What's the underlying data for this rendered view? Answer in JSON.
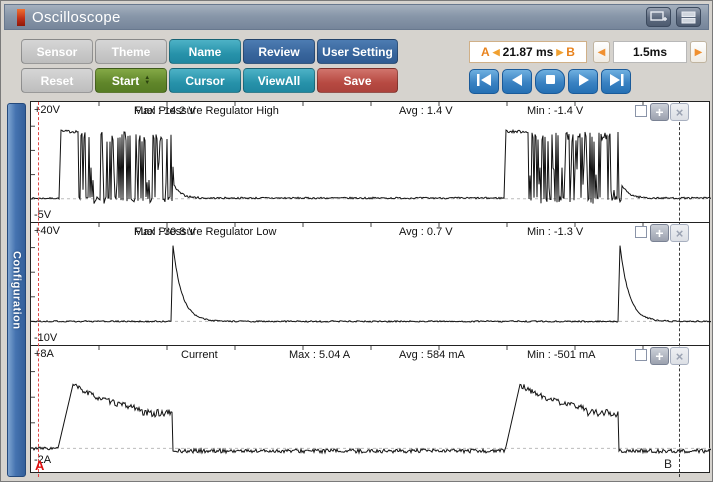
{
  "window": {
    "title": "Oscilloscope"
  },
  "toolbar": {
    "rows": [
      [
        {
          "label": "Sensor",
          "style": "gray"
        },
        {
          "label": "Theme",
          "style": "gray"
        },
        {
          "label": "Name",
          "style": "teal"
        },
        {
          "label": "Review",
          "style": "blue"
        },
        {
          "label": "User Setting",
          "style": "blue"
        }
      ],
      [
        {
          "label": "Reset",
          "style": "gray"
        },
        {
          "label": "Start",
          "style": "green",
          "spinner": true
        },
        {
          "label": "Cursor",
          "style": "teal"
        },
        {
          "label": "ViewAll",
          "style": "teal"
        },
        {
          "label": "Save",
          "style": "red"
        }
      ]
    ],
    "cursor_readout": {
      "a": "A",
      "value": "21.87 ms",
      "b": "B"
    },
    "timebase": {
      "value": "1.5ms"
    },
    "playback": [
      {
        "name": "skip-to-start"
      },
      {
        "name": "step-back"
      },
      {
        "name": "stop"
      },
      {
        "name": "play"
      },
      {
        "name": "skip-to-end"
      }
    ]
  },
  "sidebar": {
    "tab": "Configuration"
  },
  "cursors": {
    "a": {
      "label": "A"
    },
    "b": {
      "label": "B"
    }
  },
  "channels": [
    {
      "top": "+20V",
      "bottom": "-5V",
      "name": "Fuel Pressure Regulator High",
      "max": "Max : 14.2 V",
      "avg": "Avg : 1.4 V",
      "min": "Min : -1.4 V"
    },
    {
      "top": "+40V",
      "bottom": "-10V",
      "name": "Fuel Pressure Regulator Low",
      "max": "Max : 30.8 V",
      "avg": "Avg : 0.7 V",
      "min": "Min : -1.3 V"
    },
    {
      "top": "+8A",
      "bottom": "-2A",
      "name": "Current",
      "max": "Max : 5.04 A",
      "avg": "Avg : 584 mA",
      "min": "Min : -501 mA"
    }
  ],
  "chart_data": [
    {
      "type": "line",
      "title": "Fuel Pressure Regulator High",
      "unit": "V",
      "ylim": [
        -5,
        20
      ],
      "x_unit": "px",
      "xlim": [
        0,
        680
      ],
      "stats": {
        "max": 14.2,
        "avg": 1.4,
        "min": -1.4
      },
      "segments": [
        {
          "t": "flat",
          "x": [
            0,
            28
          ],
          "lv": 0.1,
          "amp": 0.15
        },
        {
          "t": "ramp",
          "x": [
            28,
            30
          ],
          "from": 0,
          "to": 14.2
        },
        {
          "t": "flat",
          "x": [
            30,
            47
          ],
          "lv": 13.9,
          "amp": 0.3
        },
        {
          "t": "burst",
          "x": [
            47,
            142
          ],
          "hi": 13.8,
          "lo": -1.0
        },
        {
          "t": "decay",
          "x": [
            142,
            168
          ],
          "from": 3.2,
          "to": 0.15,
          "tau": 7,
          "amp": 0.2
        },
        {
          "t": "flat",
          "x": [
            168,
            473
          ],
          "lv": 0.15,
          "amp": 0.18
        },
        {
          "t": "ramp",
          "x": [
            473,
            475
          ],
          "from": 0,
          "to": 14.2
        },
        {
          "t": "flat",
          "x": [
            475,
            497
          ],
          "lv": 13.9,
          "amp": 0.3
        },
        {
          "t": "burst",
          "x": [
            497,
            590
          ],
          "hi": 13.8,
          "lo": -1.0
        },
        {
          "t": "decay",
          "x": [
            590,
            616
          ],
          "from": 3.2,
          "to": 0.15,
          "tau": 7,
          "amp": 0.2
        },
        {
          "t": "flat",
          "x": [
            616,
            680
          ],
          "lv": 0.15,
          "amp": 0.18
        }
      ]
    },
    {
      "type": "line",
      "title": "Fuel Pressure Regulator Low",
      "unit": "V",
      "ylim": [
        -10,
        40
      ],
      "x_unit": "px",
      "xlim": [
        0,
        680
      ],
      "stats": {
        "max": 30.8,
        "avg": 0.7,
        "min": -1.3
      },
      "segments": [
        {
          "t": "flat",
          "x": [
            0,
            140
          ],
          "lv": 0,
          "amp": 0.3
        },
        {
          "t": "ramp",
          "x": [
            140,
            142
          ],
          "from": 0,
          "to": 30.8
        },
        {
          "t": "decay",
          "x": [
            142,
            190
          ],
          "from": 30.8,
          "to": 0,
          "tau": 9,
          "amp": 0.3
        },
        {
          "t": "flat",
          "x": [
            190,
            587
          ],
          "lv": 0,
          "amp": 0.3
        },
        {
          "t": "ramp",
          "x": [
            587,
            589
          ],
          "from": 0,
          "to": 30.8
        },
        {
          "t": "decay",
          "x": [
            589,
            637
          ],
          "from": 30.8,
          "to": 0,
          "tau": 9,
          "amp": 0.3
        },
        {
          "t": "flat",
          "x": [
            637,
            680
          ],
          "lv": 0,
          "amp": 0.3
        }
      ]
    },
    {
      "type": "line",
      "title": "Current",
      "unit": "A",
      "ylim": [
        -2,
        8
      ],
      "x_unit": "px",
      "xlim": [
        0,
        680
      ],
      "stats": {
        "max": 5.04,
        "avg": 0.584,
        "min": -0.501
      },
      "segments": [
        {
          "t": "flat",
          "x": [
            0,
            27
          ],
          "lv": 0,
          "amp": 0.12
        },
        {
          "t": "ramp",
          "x": [
            27,
            42
          ],
          "from": 0,
          "to": 5.0
        },
        {
          "t": "decay",
          "x": [
            42,
            108
          ],
          "from": 5.0,
          "to": 2.6,
          "tau": 45,
          "amp": 0.22
        },
        {
          "t": "flat",
          "x": [
            108,
            141
          ],
          "lv": 2.75,
          "amp": 0.3
        },
        {
          "t": "ramp",
          "x": [
            141,
            142
          ],
          "from": 2.7,
          "to": -0.2
        },
        {
          "t": "flat",
          "x": [
            142,
            474
          ],
          "lv": -0.2,
          "amp": 0.16
        },
        {
          "t": "ramp",
          "x": [
            474,
            489
          ],
          "from": -0.2,
          "to": 5.0
        },
        {
          "t": "decay",
          "x": [
            489,
            556
          ],
          "from": 5.0,
          "to": 2.6,
          "tau": 45,
          "amp": 0.22
        },
        {
          "t": "flat",
          "x": [
            556,
            587
          ],
          "lv": 2.75,
          "amp": 0.3
        },
        {
          "t": "ramp",
          "x": [
            587,
            588
          ],
          "from": 2.7,
          "to": -0.2
        },
        {
          "t": "flat",
          "x": [
            588,
            680
          ],
          "lv": -0.2,
          "amp": 0.16
        }
      ]
    }
  ],
  "colors": {
    "titlebar": "#8897a9",
    "background": "#d6d3ce",
    "teal": "#2792aa",
    "blue": "#38659c",
    "green": "#60862a",
    "red": "#b74a42",
    "gray_button": "#c6c6c6",
    "playback_blue": "#2570b4",
    "orange_accent": "#e8821c",
    "config_tab": "#4573b0",
    "cursor_a": "#dd1111",
    "cursor_b": "#3a3a3a",
    "trace": "#111111"
  }
}
